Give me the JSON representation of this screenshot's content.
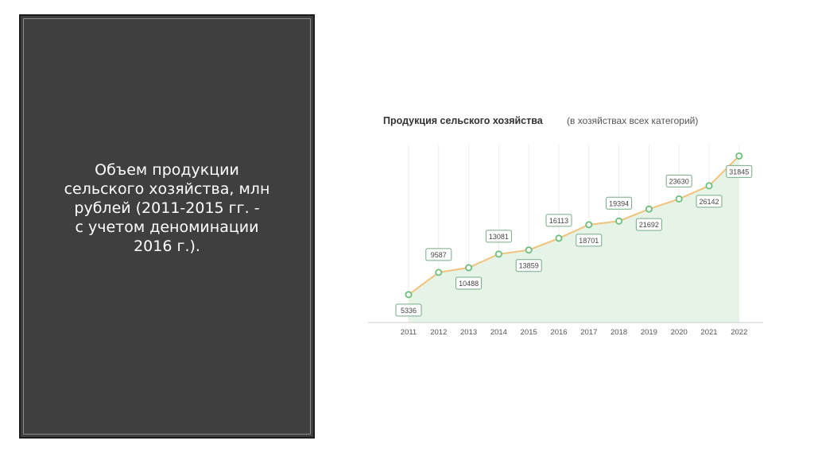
{
  "slide": {
    "caption": "Объем продукции\nсельского хозяйства, млн\nрублей (2011-2015 гг. -\nс учетом деноминации\n2016 г.)."
  },
  "colors": {
    "panel_bg": "#3f3f3f",
    "line": "#f0c27b",
    "marker": "#6abf7b",
    "area": "#e6f4e8",
    "label_border": "#77aa86"
  },
  "chart_data": {
    "type": "area",
    "title": "Продукция сельского хозяйства",
    "subtitle": "(в хозяйствах всех категорий)",
    "categories": [
      "2011",
      "2012",
      "2013",
      "2014",
      "2015",
      "2016",
      "2017",
      "2018",
      "2019",
      "2020",
      "2021",
      "2022"
    ],
    "values": [
      5336,
      9587,
      10488,
      13081,
      13859,
      16113,
      18701,
      19394,
      21692,
      23630,
      26142,
      31845
    ],
    "label_position": [
      "below",
      "above",
      "below",
      "above",
      "below",
      "above",
      "below",
      "above",
      "below",
      "above",
      "below",
      "below"
    ],
    "xlabel": "",
    "ylabel": "",
    "grid": "vertical",
    "legend": "none"
  }
}
